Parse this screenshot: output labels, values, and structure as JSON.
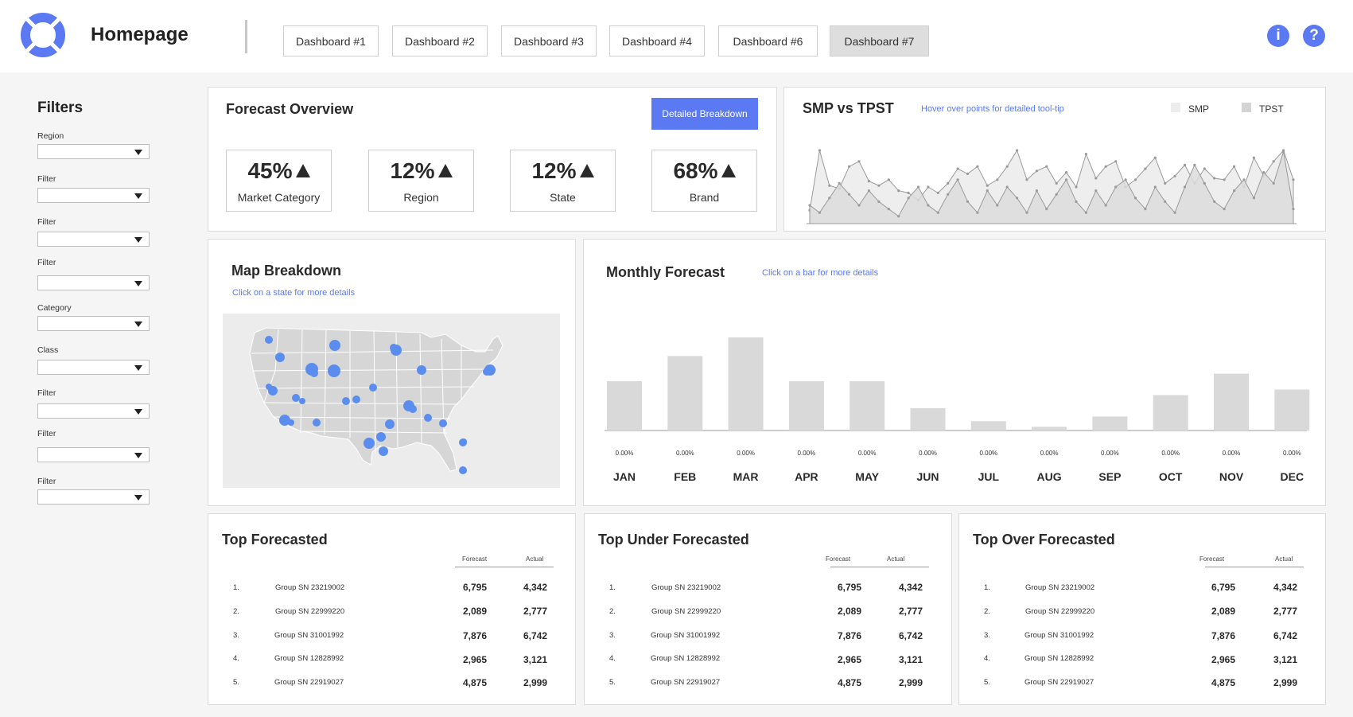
{
  "header": {
    "title": "Homepage",
    "tabs": [
      {
        "label": "Dashboard #1",
        "active": false
      },
      {
        "label": "Dashboard #2",
        "active": false
      },
      {
        "label": "Dashboard #3",
        "active": false
      },
      {
        "label": "Dashboard #4",
        "active": false
      },
      {
        "label": "Dashboard #6",
        "active": false
      },
      {
        "label": "Dashboard #7",
        "active": true
      }
    ],
    "info_icon": "info-icon",
    "help_icon": "help-icon",
    "info_glyph": "i",
    "help_glyph": "?"
  },
  "sidebar": {
    "title": "Filters",
    "filters": [
      {
        "label": "Region",
        "value": ""
      },
      {
        "label": "Filter",
        "value": ""
      },
      {
        "label": "Filter",
        "value": ""
      },
      {
        "label": "Filter",
        "value": ""
      },
      {
        "label": "Category",
        "value": ""
      },
      {
        "label": "Class",
        "value": ""
      },
      {
        "label": "Filter",
        "value": ""
      },
      {
        "label": "Filter",
        "value": ""
      },
      {
        "label": "Filter",
        "value": ""
      }
    ]
  },
  "forecast_overview": {
    "title": "Forecast Overview",
    "button_label": "Detailed Breakdown",
    "kpis": [
      {
        "value": "45%",
        "label": "Market Category",
        "trend": "up"
      },
      {
        "value": "12%",
        "label": "Region",
        "trend": "up"
      },
      {
        "value": "12%",
        "label": "State",
        "trend": "up"
      },
      {
        "value": "68%",
        "label": "Brand",
        "trend": "up"
      }
    ]
  },
  "smp_vs_tpst": {
    "title": "SMP vs TPST",
    "hint": "Hover over points for detailed tool-tip",
    "legend": [
      {
        "name": "SMP",
        "color": "#ececec"
      },
      {
        "name": "TPST",
        "color": "#d4d4d4"
      }
    ]
  },
  "map_breakdown": {
    "title": "Map Breakdown",
    "hint": "Click on a state for more details",
    "dot_color": "#5b8def"
  },
  "monthly_forecast": {
    "title": "Monthly Forecast",
    "hint": "Click on a bar for more details"
  },
  "colors": {
    "accent": "#5b79f2",
    "bar": "#d9d9d9",
    "area_front": "#dcdcdc",
    "area_back": "#ececec"
  },
  "chart_data": [
    {
      "type": "area",
      "title": "SMP vs TPST",
      "xlabel": "",
      "ylabel": "",
      "ylim": [
        0,
        100
      ],
      "grid": false,
      "legend_position": "top-right",
      "series": [
        {
          "name": "SMP",
          "values": [
            18,
            100,
            52,
            48,
            78,
            85,
            58,
            52,
            60,
            45,
            42,
            32,
            50,
            42,
            55,
            75,
            68,
            78,
            52,
            60,
            78,
            100,
            60,
            72,
            78,
            55,
            70,
            50,
            95,
            62,
            78,
            85,
            50,
            60,
            75,
            90,
            55,
            65,
            80,
            55,
            75,
            62,
            60,
            78,
            50,
            90,
            65,
            85,
            100,
            60
          ]
        },
        {
          "name": "TPST",
          "values": [
            25,
            15,
            35,
            55,
            40,
            25,
            45,
            30,
            20,
            10,
            35,
            50,
            25,
            15,
            40,
            60,
            30,
            15,
            45,
            25,
            50,
            35,
            15,
            45,
            20,
            40,
            60,
            30,
            15,
            45,
            25,
            50,
            60,
            35,
            20,
            50,
            30,
            15,
            50,
            80,
            55,
            30,
            20,
            45,
            60,
            35,
            70,
            55,
            98,
            20
          ]
        }
      ]
    },
    {
      "type": "bar",
      "title": "Monthly Forecast",
      "xlabel": "",
      "ylabel": "",
      "ylim": [
        0,
        100
      ],
      "grid": false,
      "categories": [
        "JAN",
        "FEB",
        "MAR",
        "APR",
        "MAY",
        "JUN",
        "JUL",
        "AUG",
        "SEP",
        "OCT",
        "NOV",
        "DEC"
      ],
      "values": [
        53,
        80,
        100,
        53,
        53,
        24,
        10,
        4,
        15,
        38,
        61,
        44
      ],
      "data_labels": [
        "0.00%",
        "0.00%",
        "0.00%",
        "0.00%",
        "0.00%",
        "0.00%",
        "0.00%",
        "0.00%",
        "0.00%",
        "0.00%",
        "0.00%",
        "0.00%"
      ]
    }
  ],
  "tables": {
    "col_forecast": "Forecast",
    "col_actual": "Actual",
    "top": {
      "title": "Top Forecasted",
      "rows": [
        {
          "rank": "1.",
          "group": "Group SN 23219002",
          "forecast": "6,795",
          "actual": "4,342"
        },
        {
          "rank": "2.",
          "group": "Group SN 22999220",
          "forecast": "2,089",
          "actual": "2,777"
        },
        {
          "rank": "3.",
          "group": "Group SN 31001992",
          "forecast": "7,876",
          "actual": "6,742"
        },
        {
          "rank": "4.",
          "group": "Group SN 12828992",
          "forecast": "2,965",
          "actual": "3,121"
        },
        {
          "rank": "5.",
          "group": "Group SN 22919027",
          "forecast": "4,875",
          "actual": "2,999"
        }
      ]
    },
    "under": {
      "title": "Top Under Forecasted",
      "rows": [
        {
          "rank": "1.",
          "group": "Group SN 23219002",
          "forecast": "6,795",
          "actual": "4,342"
        },
        {
          "rank": "2.",
          "group": "Group SN 22999220",
          "forecast": "2,089",
          "actual": "2,777"
        },
        {
          "rank": "3.",
          "group": "Group SN 31001992",
          "forecast": "7,876",
          "actual": "6,742"
        },
        {
          "rank": "4.",
          "group": "Group SN 12828992",
          "forecast": "2,965",
          "actual": "3,121"
        },
        {
          "rank": "5.",
          "group": "Group SN 22919027",
          "forecast": "4,875",
          "actual": "2,999"
        }
      ]
    },
    "over": {
      "title": "Top Over Forecasted",
      "rows": [
        {
          "rank": "1.",
          "group": "Group SN 23219002",
          "forecast": "6,795",
          "actual": "4,342"
        },
        {
          "rank": "2.",
          "group": "Group SN 22999220",
          "forecast": "2,089",
          "actual": "2,777"
        },
        {
          "rank": "3.",
          "group": "Group SN 31001992",
          "forecast": "7,876",
          "actual": "6,742"
        },
        {
          "rank": "4.",
          "group": "Group SN 12828992",
          "forecast": "2,965",
          "actual": "3,121"
        },
        {
          "rank": "5.",
          "group": "Group SN 22919027",
          "forecast": "4,875",
          "actual": "2,999"
        }
      ]
    }
  }
}
